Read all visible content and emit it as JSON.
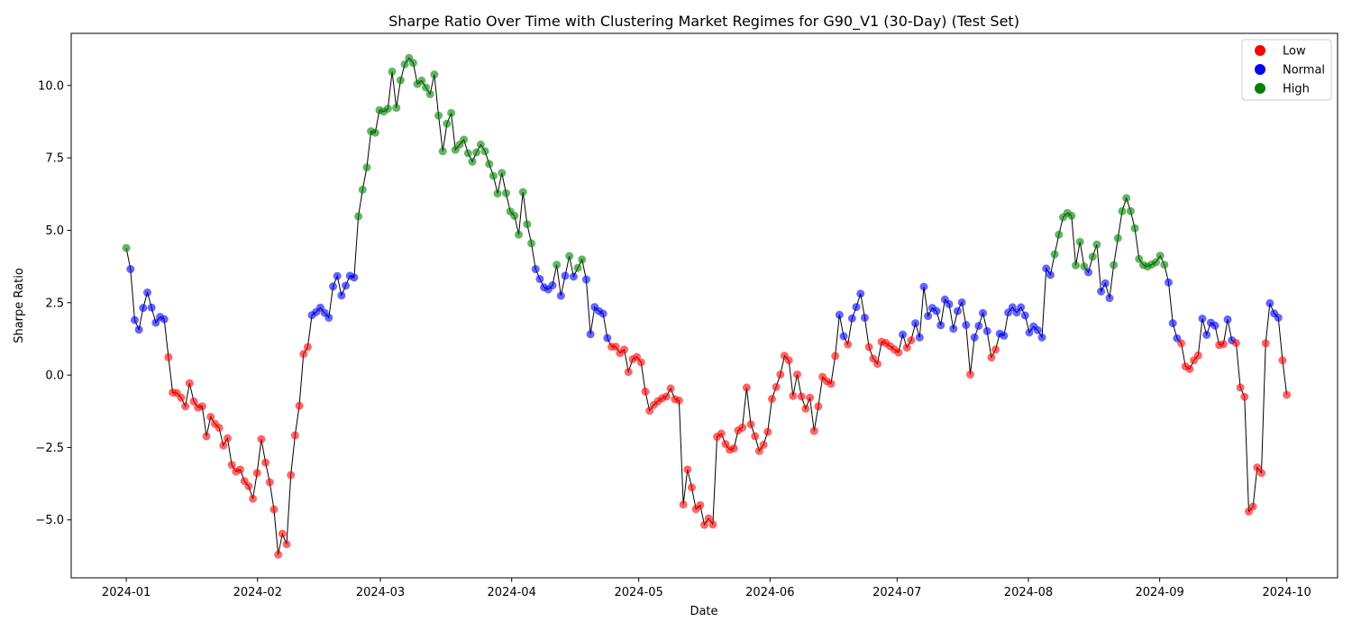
{
  "chart_data": {
    "type": "line",
    "title": "Sharpe Ratio Over Time with Clustering Market Regimes for G90_V1 (30-Day) (Test Set)",
    "xlabel": "Date",
    "ylabel": "Sharpe Ratio",
    "x_start": "2024-01-01",
    "x_end": "2024-10-01",
    "xlim": [
      "2023-12-19",
      "2024-10-13"
    ],
    "ylim": [
      -7.0,
      11.8
    ],
    "x_ticks": [
      "2024-01",
      "2024-02",
      "2024-03",
      "2024-04",
      "2024-05",
      "2024-06",
      "2024-07",
      "2024-08",
      "2024-09",
      "2024-10"
    ],
    "y_ticks": [
      "−5.0",
      "−2.5",
      "0.0",
      "2.5",
      "5.0",
      "7.5",
      "10.0"
    ],
    "grid": false,
    "legend_position": "top-right",
    "legend": [
      {
        "key": "Low",
        "label": "Low",
        "color": "#ff0000"
      },
      {
        "key": "Normal",
        "label": "Normal",
        "color": "#0000ff"
      },
      {
        "key": "High",
        "label": "High",
        "color": "#008000"
      }
    ],
    "line_color": "#000000",
    "points": [
      [
        4.39,
        "High"
      ],
      [
        3.66,
        "Normal"
      ],
      [
        1.9,
        "Normal"
      ],
      [
        1.57,
        "Normal"
      ],
      [
        2.32,
        "Normal"
      ],
      [
        2.85,
        "Normal"
      ],
      [
        2.33,
        "Normal"
      ],
      [
        1.81,
        "Normal"
      ],
      [
        2.01,
        "Normal"
      ],
      [
        1.93,
        "Normal"
      ],
      [
        0.62,
        "Low"
      ],
      [
        -0.6,
        "Low"
      ],
      [
        -0.62,
        "Low"
      ],
      [
        -0.78,
        "Low"
      ],
      [
        -1.08,
        "Low"
      ],
      [
        -0.28,
        "Low"
      ],
      [
        -0.91,
        "Low"
      ],
      [
        -1.12,
        "Low"
      ],
      [
        -1.08,
        "Low"
      ],
      [
        -2.11,
        "Low"
      ],
      [
        -1.44,
        "Low"
      ],
      [
        -1.68,
        "Low"
      ],
      [
        -1.82,
        "Low"
      ],
      [
        -2.43,
        "Low"
      ],
      [
        -2.18,
        "Low"
      ],
      [
        -3.1,
        "Low"
      ],
      [
        -3.33,
        "Low"
      ],
      [
        -3.26,
        "Low"
      ],
      [
        -3.66,
        "Low"
      ],
      [
        -3.84,
        "Low"
      ],
      [
        -4.27,
        "Low"
      ],
      [
        -3.38,
        "Low"
      ],
      [
        -2.21,
        "Low"
      ],
      [
        -3.02,
        "Low"
      ],
      [
        -3.7,
        "Low"
      ],
      [
        -4.64,
        "Low"
      ],
      [
        -6.2,
        "Low"
      ],
      [
        -5.48,
        "Low"
      ],
      [
        -5.84,
        "Low"
      ],
      [
        -3.45,
        "Low"
      ],
      [
        -2.08,
        "Low"
      ],
      [
        -1.06,
        "Low"
      ],
      [
        0.73,
        "Low"
      ],
      [
        0.97,
        "Low"
      ],
      [
        2.07,
        "Normal"
      ],
      [
        2.18,
        "Normal"
      ],
      [
        2.33,
        "Normal"
      ],
      [
        2.15,
        "Normal"
      ],
      [
        1.98,
        "Normal"
      ],
      [
        3.06,
        "Normal"
      ],
      [
        3.42,
        "Normal"
      ],
      [
        2.75,
        "Normal"
      ],
      [
        3.09,
        "Normal"
      ],
      [
        3.43,
        "Normal"
      ],
      [
        3.37,
        "Normal"
      ],
      [
        5.48,
        "High"
      ],
      [
        6.4,
        "High"
      ],
      [
        7.17,
        "High"
      ],
      [
        8.42,
        "High"
      ],
      [
        8.37,
        "High"
      ],
      [
        9.15,
        "High"
      ],
      [
        9.1,
        "High"
      ],
      [
        9.2,
        "High"
      ],
      [
        10.48,
        "High"
      ],
      [
        9.23,
        "High"
      ],
      [
        10.18,
        "High"
      ],
      [
        10.73,
        "High"
      ],
      [
        10.95,
        "High"
      ],
      [
        10.78,
        "High"
      ],
      [
        10.05,
        "High"
      ],
      [
        10.17,
        "High"
      ],
      [
        9.93,
        "High"
      ],
      [
        9.7,
        "High"
      ],
      [
        10.38,
        "High"
      ],
      [
        8.96,
        "High"
      ],
      [
        7.73,
        "High"
      ],
      [
        8.68,
        "High"
      ],
      [
        9.05,
        "High"
      ],
      [
        7.78,
        "High"
      ],
      [
        7.96,
        "High"
      ],
      [
        8.13,
        "High"
      ],
      [
        7.66,
        "High"
      ],
      [
        7.37,
        "High"
      ],
      [
        7.69,
        "High"
      ],
      [
        7.96,
        "High"
      ],
      [
        7.73,
        "High"
      ],
      [
        7.29,
        "High"
      ],
      [
        6.88,
        "High"
      ],
      [
        6.27,
        "High"
      ],
      [
        6.98,
        "High"
      ],
      [
        6.28,
        "High"
      ],
      [
        5.65,
        "High"
      ],
      [
        5.5,
        "High"
      ],
      [
        4.85,
        "High"
      ],
      [
        6.32,
        "High"
      ],
      [
        5.21,
        "High"
      ],
      [
        4.55,
        "High"
      ],
      [
        3.66,
        "Normal"
      ],
      [
        3.32,
        "Normal"
      ],
      [
        3.03,
        "Normal"
      ],
      [
        2.96,
        "Normal"
      ],
      [
        3.1,
        "Normal"
      ],
      [
        3.81,
        "High"
      ],
      [
        2.74,
        "Normal"
      ],
      [
        3.43,
        "Normal"
      ],
      [
        4.11,
        "High"
      ],
      [
        3.4,
        "Normal"
      ],
      [
        3.7,
        "High"
      ],
      [
        3.99,
        "High"
      ],
      [
        3.3,
        "Normal"
      ],
      [
        1.41,
        "Normal"
      ],
      [
        2.35,
        "Normal"
      ],
      [
        2.21,
        "Normal"
      ],
      [
        2.12,
        "Normal"
      ],
      [
        1.28,
        "Normal"
      ],
      [
        0.98,
        "Low"
      ],
      [
        0.98,
        "Low"
      ],
      [
        0.76,
        "Low"
      ],
      [
        0.88,
        "Low"
      ],
      [
        0.11,
        "Low"
      ],
      [
        0.55,
        "Low"
      ],
      [
        0.63,
        "Low"
      ],
      [
        0.44,
        "Low"
      ],
      [
        -0.57,
        "Low"
      ],
      [
        -1.23,
        "Low"
      ],
      [
        -1.03,
        "Low"
      ],
      [
        -0.9,
        "Low"
      ],
      [
        -0.8,
        "Low"
      ],
      [
        -0.74,
        "Low"
      ],
      [
        -0.46,
        "Low"
      ],
      [
        -0.83,
        "Low"
      ],
      [
        -0.88,
        "Low"
      ],
      [
        -4.47,
        "Low"
      ],
      [
        -3.26,
        "Low"
      ],
      [
        -3.88,
        "Low"
      ],
      [
        -4.63,
        "Low"
      ],
      [
        -4.49,
        "Low"
      ],
      [
        -5.17,
        "Low"
      ],
      [
        -4.95,
        "Low"
      ],
      [
        -5.16,
        "Low"
      ],
      [
        -2.13,
        "Low"
      ],
      [
        -2.02,
        "Low"
      ],
      [
        -2.38,
        "Low"
      ],
      [
        -2.58,
        "Low"
      ],
      [
        -2.53,
        "Low"
      ],
      [
        -1.91,
        "Low"
      ],
      [
        -1.81,
        "Low"
      ],
      [
        -0.43,
        "Low"
      ],
      [
        -1.7,
        "Low"
      ],
      [
        -2.11,
        "Low"
      ],
      [
        -2.62,
        "Low"
      ],
      [
        -2.41,
        "Low"
      ],
      [
        -1.96,
        "Low"
      ],
      [
        -0.82,
        "Low"
      ],
      [
        -0.41,
        "Low"
      ],
      [
        0.02,
        "Low"
      ],
      [
        0.67,
        "Low"
      ],
      [
        0.51,
        "Low"
      ],
      [
        -0.72,
        "Low"
      ],
      [
        0.02,
        "Low"
      ],
      [
        -0.74,
        "Low"
      ],
      [
        -1.16,
        "Low"
      ],
      [
        -0.78,
        "Low"
      ],
      [
        -1.93,
        "Low"
      ],
      [
        -1.08,
        "Low"
      ],
      [
        -0.06,
        "Low"
      ],
      [
        -0.21,
        "Low"
      ],
      [
        -0.3,
        "Low"
      ],
      [
        0.66,
        "Low"
      ],
      [
        2.08,
        "Normal"
      ],
      [
        1.34,
        "Normal"
      ],
      [
        1.06,
        "Low"
      ],
      [
        1.96,
        "Normal"
      ],
      [
        2.35,
        "Normal"
      ],
      [
        2.81,
        "Normal"
      ],
      [
        1.98,
        "Normal"
      ],
      [
        0.97,
        "Low"
      ],
      [
        0.57,
        "Low"
      ],
      [
        0.39,
        "Low"
      ],
      [
        1.15,
        "Low"
      ],
      [
        1.11,
        "Low"
      ],
      [
        1.0,
        "Low"
      ],
      [
        0.89,
        "Low"
      ],
      [
        0.78,
        "Low"
      ],
      [
        1.4,
        "Normal"
      ],
      [
        0.95,
        "Low"
      ],
      [
        1.2,
        "Low"
      ],
      [
        1.79,
        "Normal"
      ],
      [
        1.3,
        "Normal"
      ],
      [
        3.05,
        "Normal"
      ],
      [
        2.04,
        "Normal"
      ],
      [
        2.32,
        "Normal"
      ],
      [
        2.21,
        "Normal"
      ],
      [
        1.72,
        "Normal"
      ],
      [
        2.61,
        "Normal"
      ],
      [
        2.45,
        "Normal"
      ],
      [
        1.6,
        "Normal"
      ],
      [
        2.21,
        "Normal"
      ],
      [
        2.51,
        "Normal"
      ],
      [
        1.73,
        "Normal"
      ],
      [
        0.02,
        "Low"
      ],
      [
        1.3,
        "Normal"
      ],
      [
        1.7,
        "Normal"
      ],
      [
        2.14,
        "Normal"
      ],
      [
        1.52,
        "Normal"
      ],
      [
        0.61,
        "Low"
      ],
      [
        0.88,
        "Low"
      ],
      [
        1.43,
        "Normal"
      ],
      [
        1.36,
        "Normal"
      ],
      [
        2.16,
        "Normal"
      ],
      [
        2.34,
        "Normal"
      ],
      [
        2.16,
        "Normal"
      ],
      [
        2.34,
        "Normal"
      ],
      [
        2.06,
        "Normal"
      ],
      [
        1.47,
        "Normal"
      ],
      [
        1.68,
        "Normal"
      ],
      [
        1.55,
        "Normal"
      ],
      [
        1.3,
        "Normal"
      ],
      [
        3.68,
        "Normal"
      ],
      [
        3.46,
        "Normal"
      ],
      [
        4.17,
        "High"
      ],
      [
        4.85,
        "High"
      ],
      [
        5.45,
        "High"
      ],
      [
        5.6,
        "High"
      ],
      [
        5.5,
        "High"
      ],
      [
        3.79,
        "High"
      ],
      [
        4.6,
        "High"
      ],
      [
        3.75,
        "High"
      ],
      [
        3.55,
        "Normal"
      ],
      [
        4.09,
        "High"
      ],
      [
        4.51,
        "High"
      ],
      [
        2.89,
        "Normal"
      ],
      [
        3.17,
        "Normal"
      ],
      [
        2.66,
        "Normal"
      ],
      [
        3.8,
        "High"
      ],
      [
        4.73,
        "High"
      ],
      [
        5.66,
        "High"
      ],
      [
        6.11,
        "High"
      ],
      [
        5.66,
        "High"
      ],
      [
        5.07,
        "High"
      ],
      [
        4.01,
        "High"
      ],
      [
        3.8,
        "High"
      ],
      [
        3.75,
        "High"
      ],
      [
        3.82,
        "High"
      ],
      [
        3.9,
        "High"
      ],
      [
        4.12,
        "High"
      ],
      [
        3.81,
        "High"
      ],
      [
        3.2,
        "Normal"
      ],
      [
        1.79,
        "Normal"
      ],
      [
        1.27,
        "Normal"
      ],
      [
        1.1,
        "Low"
      ],
      [
        0.3,
        "Low"
      ],
      [
        0.21,
        "Low"
      ],
      [
        0.51,
        "Low"
      ],
      [
        0.68,
        "Low"
      ],
      [
        1.95,
        "Normal"
      ],
      [
        1.39,
        "Normal"
      ],
      [
        1.81,
        "Normal"
      ],
      [
        1.71,
        "Normal"
      ],
      [
        1.04,
        "Low"
      ],
      [
        1.07,
        "Low"
      ],
      [
        1.92,
        "Normal"
      ],
      [
        1.2,
        "Normal"
      ],
      [
        1.11,
        "Low"
      ],
      [
        -0.43,
        "Low"
      ],
      [
        -0.75,
        "Low"
      ],
      [
        -4.71,
        "Low"
      ],
      [
        -4.54,
        "Low"
      ],
      [
        -3.19,
        "Low"
      ],
      [
        -3.38,
        "Low"
      ],
      [
        1.1,
        "Low"
      ],
      [
        2.48,
        "Normal"
      ],
      [
        2.13,
        "Normal"
      ],
      [
        1.98,
        "Normal"
      ],
      [
        0.51,
        "Low"
      ],
      [
        -0.68,
        "Low"
      ]
    ]
  }
}
